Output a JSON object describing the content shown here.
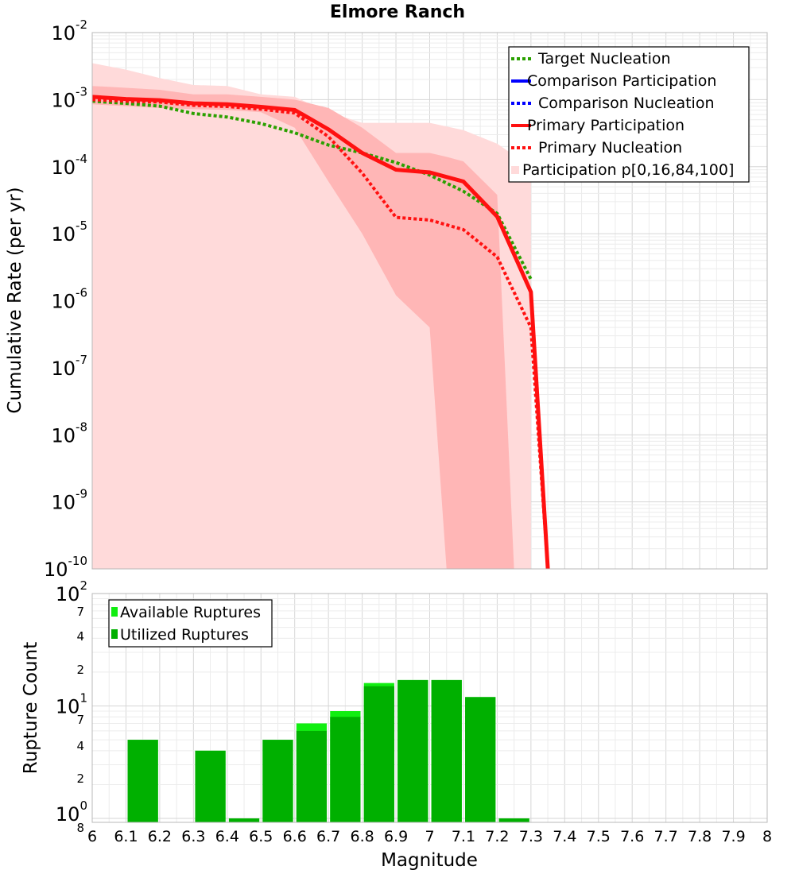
{
  "title": "Elmore Ranch",
  "chart_data": [
    {
      "type": "line",
      "title": "Elmore Ranch",
      "xlabel": "",
      "ylabel": "Cumulative Rate (per yr)",
      "xlim": [
        6,
        8
      ],
      "ylim": [
        1e-10,
        0.01
      ],
      "yscale": "log",
      "grid": true,
      "legend_position": "top-right",
      "y_ticks": [
        {
          "base": "10",
          "exp": "-2"
        },
        {
          "base": "10",
          "exp": "-3"
        },
        {
          "base": "10",
          "exp": "-4"
        },
        {
          "base": "10",
          "exp": "-5"
        },
        {
          "base": "10",
          "exp": "-6"
        },
        {
          "base": "10",
          "exp": "-7"
        },
        {
          "base": "10",
          "exp": "-8"
        },
        {
          "base": "10",
          "exp": "-9"
        },
        {
          "base": "10",
          "exp": "-10"
        }
      ],
      "legend": [
        "Target Nucleation",
        "Comparison Participation",
        "Comparison Nucleation",
        "Primary Participation",
        "Primary Nucleation",
        "Participation p[0,16,84,100]"
      ],
      "colors": {
        "target": "#2aa000",
        "comparison": "#0000ff",
        "primary": "#ff1010",
        "band_outer": "#ffdada",
        "band_inner": "#ffb6b6"
      },
      "x": [
        6.0,
        6.1,
        6.2,
        6.3,
        6.4,
        6.5,
        6.6,
        6.7,
        6.8,
        6.9,
        7.0,
        7.1,
        7.2,
        7.3,
        7.35
      ],
      "series": [
        {
          "name": "Target Nucleation",
          "style": "dotted",
          "color": "#2aa000",
          "x": [
            6.0,
            6.1,
            6.2,
            6.3,
            6.4,
            6.5,
            6.6,
            6.7,
            6.8,
            6.9,
            7.0,
            7.1,
            7.2,
            7.3
          ],
          "y": [
            0.00095,
            0.00088,
            0.0008,
            0.00062,
            0.00055,
            0.00044,
            0.00032,
            0.00021,
            0.00016,
            0.000115,
            7.5e-05,
            4.3e-05,
            2e-05,
            2.1e-06
          ]
        },
        {
          "name": "Primary Participation",
          "style": "solid",
          "color": "#ff1010",
          "x": [
            6.0,
            6.1,
            6.2,
            6.3,
            6.4,
            6.5,
            6.6,
            6.7,
            6.8,
            6.9,
            7.0,
            7.1,
            7.2,
            7.3,
            7.35
          ],
          "y": [
            0.0011,
            0.00102,
            0.00098,
            0.00088,
            0.00085,
            0.00078,
            0.0007,
            0.00036,
            0.00016,
            9e-05,
            8.2e-05,
            6e-05,
            1.8e-05,
            1.35e-06,
            1e-10
          ]
        },
        {
          "name": "Primary Nucleation",
          "style": "dotted",
          "color": "#ff1010",
          "x": [
            6.0,
            6.1,
            6.2,
            6.3,
            6.4,
            6.5,
            6.6,
            6.7,
            6.8,
            6.9,
            7.0,
            7.1,
            7.2,
            7.3,
            7.35
          ],
          "y": [
            0.001,
            0.00095,
            0.00092,
            0.00082,
            0.00079,
            0.00072,
            0.00063,
            0.00028,
            8e-05,
            1.75e-05,
            1.6e-05,
            1.15e-05,
            4.5e-06,
            4e-07,
            1e-10
          ]
        }
      ],
      "bands": [
        {
          "name": "p[0,100]",
          "color": "#ffdada",
          "x": [
            6.0,
            6.1,
            6.2,
            6.3,
            6.4,
            6.5,
            6.6,
            6.7,
            6.8,
            6.9,
            7.0,
            7.1,
            7.2,
            7.3,
            7.3
          ],
          "lower": [
            1e-10,
            1e-10,
            1e-10,
            1e-10,
            1e-10,
            1e-10,
            1e-10,
            1e-10,
            1e-10,
            1e-10,
            1e-10,
            1e-10,
            1e-10,
            1e-10,
            1e-10
          ],
          "upper": [
            0.0035,
            0.0028,
            0.0021,
            0.00165,
            0.0016,
            0.0012,
            0.0011,
            0.00065,
            0.00045,
            0.00045,
            0.00045,
            0.00035,
            0.00022,
            0.0001,
            1e-10
          ]
        },
        {
          "name": "p[16,84]",
          "color": "#ffb6b6",
          "x": [
            6.0,
            6.1,
            6.2,
            6.3,
            6.4,
            6.5,
            6.6,
            6.7,
            6.8,
            6.9,
            7.0,
            7.05,
            7.1,
            7.2,
            7.25
          ],
          "lower": [
            0.00085,
            0.0008,
            0.00075,
            0.00072,
            0.0007,
            0.00065,
            0.00038,
            6e-05,
            1e-05,
            1.2e-06,
            4e-07,
            1e-10,
            1e-10,
            1e-10,
            1e-10
          ],
          "upper": [
            0.0016,
            0.0015,
            0.0014,
            0.0012,
            0.0012,
            0.0011,
            0.001,
            0.00075,
            0.00038,
            0.00016,
            0.00016,
            0.00014,
            0.00012,
            3.8e-05,
            1e-10
          ]
        }
      ]
    },
    {
      "type": "bar",
      "xlabel": "Magnitude",
      "ylabel": "Rupture Count",
      "xlim": [
        6,
        8
      ],
      "ylim": [
        1,
        100
      ],
      "yscale": "log",
      "grid": true,
      "legend_position": "top-left",
      "x_tick_labels": [
        "6",
        "6.1",
        "6.2",
        "6.3",
        "6.4",
        "6.5",
        "6.6",
        "6.7",
        "6.8",
        "6.9",
        "7",
        "7.1",
        "7.2",
        "7.3",
        "7.4",
        "7.5",
        "7.6",
        "7.7",
        "7.8",
        "7.9",
        "8"
      ],
      "y_major_ticks": [
        {
          "base": "10",
          "exp": "2"
        },
        {
          "base": "10",
          "exp": "1"
        },
        {
          "base": "10",
          "exp": "0"
        }
      ],
      "y_minor_ticks": [
        "7",
        "4",
        "2",
        "7",
        "4",
        "2",
        "8"
      ],
      "legend": [
        "Available Ruptures",
        "Utilized Ruptures"
      ],
      "colors": {
        "available": "#11ee11",
        "utilized": "#00b000"
      },
      "categories": [
        6.15,
        6.25,
        6.35,
        6.45,
        6.55,
        6.65,
        6.75,
        6.85,
        6.95,
        7.05,
        7.15,
        7.25
      ],
      "series": [
        {
          "name": "Available Ruptures",
          "values": [
            5,
            0,
            4,
            1,
            5,
            7,
            9,
            16,
            17,
            17,
            12,
            1
          ]
        },
        {
          "name": "Utilized Ruptures",
          "values": [
            5,
            0,
            4,
            1,
            5,
            6,
            8,
            15,
            17,
            17,
            12,
            1
          ]
        }
      ]
    }
  ]
}
